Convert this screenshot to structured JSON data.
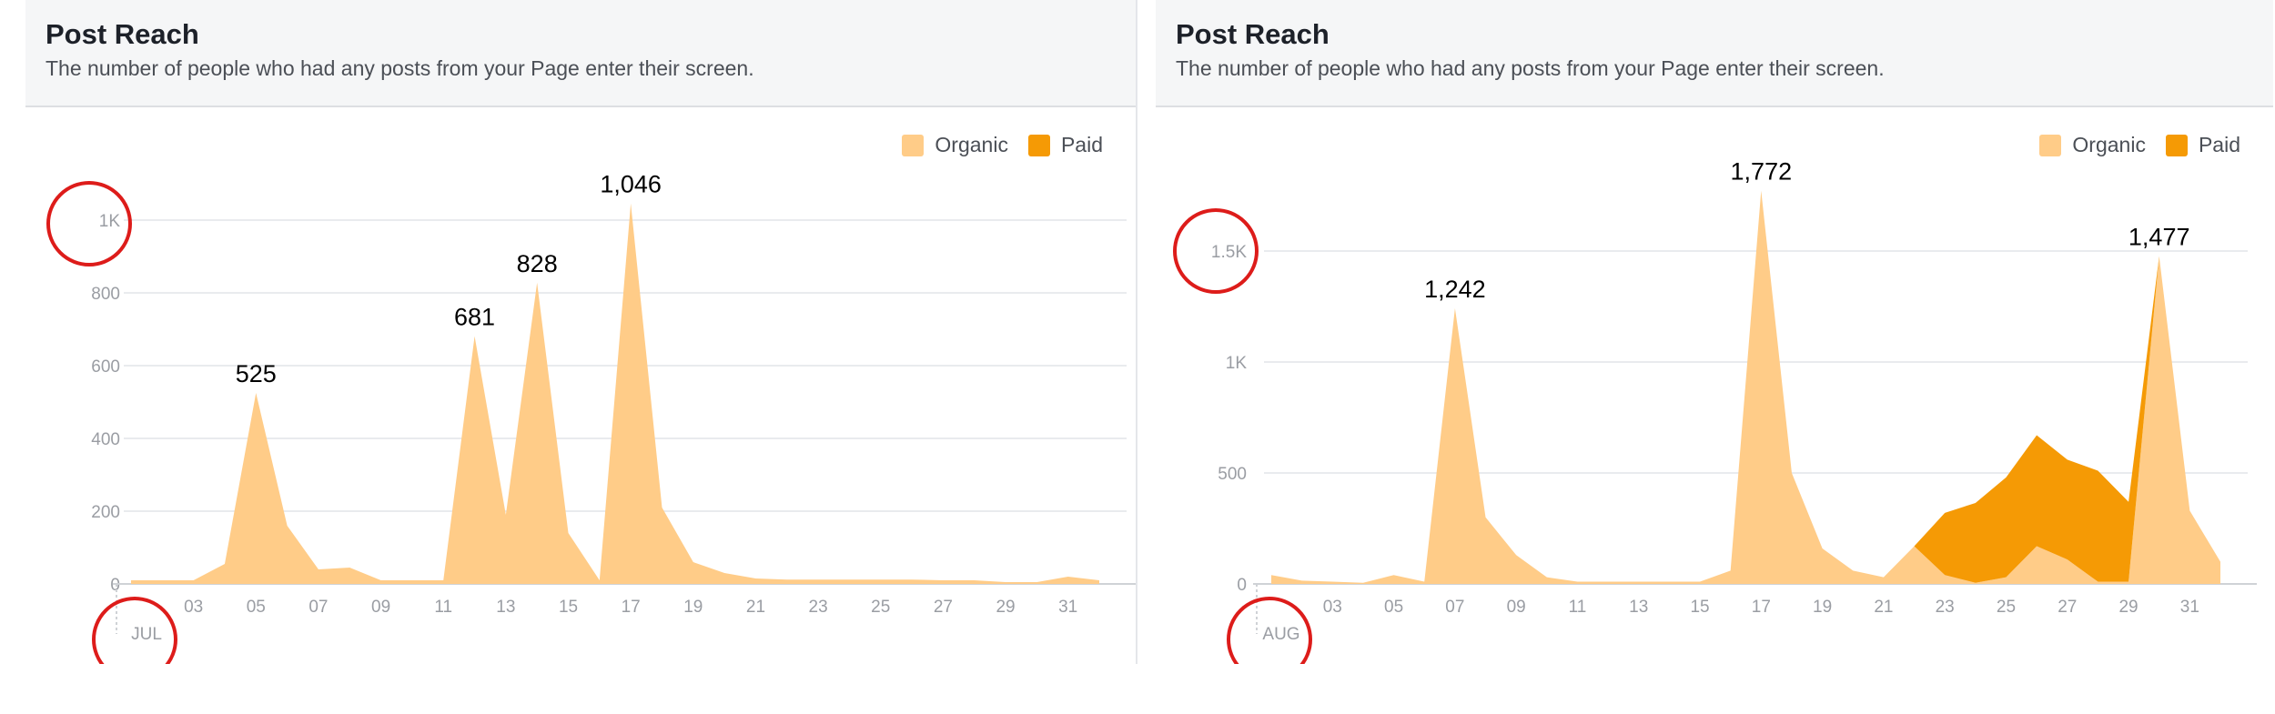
{
  "colors": {
    "organic": "#ffcc88",
    "paid": "#f59a05",
    "grid": "#e9ebee",
    "annotation": "#dd1c1a"
  },
  "panels": [
    {
      "title": "Post Reach",
      "subtitle": "The number of people who had any posts from your Page enter their screen.",
      "legend": [
        "Organic",
        "Paid"
      ]
    },
    {
      "title": "Post Reach",
      "subtitle": "The number of people who had any posts from your Page enter their screen.",
      "legend": [
        "Organic",
        "Paid"
      ]
    }
  ],
  "chart_data": [
    {
      "type": "area",
      "title": "Post Reach",
      "month_label": "JUL",
      "x": [
        1,
        2,
        3,
        4,
        5,
        6,
        7,
        8,
        9,
        10,
        11,
        12,
        13,
        14,
        15,
        16,
        17,
        18,
        19,
        20,
        21,
        22,
        23,
        24,
        25,
        26,
        27,
        28,
        29,
        30,
        31,
        32
      ],
      "xticks": [
        "03",
        "05",
        "07",
        "09",
        "11",
        "13",
        "15",
        "17",
        "19",
        "21",
        "23",
        "25",
        "27",
        "29",
        "31"
      ],
      "yticks": [
        "0",
        "200",
        "400",
        "600",
        "800",
        "1K"
      ],
      "ytick_values": [
        0,
        200,
        400,
        600,
        800,
        1000
      ],
      "ylim": [
        0,
        1000
      ],
      "xlim": [
        1,
        32
      ],
      "series": [
        {
          "name": "Organic",
          "values": [
            10,
            10,
            10,
            55,
            525,
            160,
            40,
            45,
            10,
            10,
            10,
            681,
            190,
            828,
            140,
            10,
            1046,
            210,
            60,
            30,
            15,
            12,
            12,
            12,
            12,
            12,
            10,
            10,
            5,
            5,
            20,
            10
          ]
        },
        {
          "name": "Paid",
          "values": [
            0,
            0,
            0,
            0,
            0,
            0,
            0,
            0,
            0,
            0,
            0,
            0,
            0,
            0,
            0,
            0,
            0,
            0,
            0,
            0,
            0,
            0,
            0,
            0,
            0,
            0,
            0,
            0,
            0,
            0,
            0,
            0
          ]
        }
      ],
      "data_labels": [
        {
          "x": 5,
          "value": 525,
          "text": "525"
        },
        {
          "x": 12,
          "value": 681,
          "text": "681"
        },
        {
          "x": 14,
          "value": 828,
          "text": "828"
        },
        {
          "x": 17,
          "value": 1046,
          "text": "1,046"
        }
      ],
      "legend_position": "top-right",
      "highlighted": [
        "1K",
        "JUL"
      ]
    },
    {
      "type": "area",
      "title": "Post Reach",
      "month_label": "AUG",
      "x": [
        1,
        2,
        3,
        4,
        5,
        6,
        7,
        8,
        9,
        10,
        11,
        12,
        13,
        14,
        15,
        16,
        17,
        18,
        19,
        20,
        21,
        22,
        23,
        24,
        25,
        26,
        27,
        28,
        29,
        30,
        31,
        32
      ],
      "xticks": [
        "03",
        "05",
        "07",
        "09",
        "11",
        "13",
        "15",
        "17",
        "19",
        "21",
        "23",
        "25",
        "27",
        "29",
        "31"
      ],
      "yticks": [
        "0",
        "500",
        "1K",
        "1.5K"
      ],
      "ytick_values": [
        0,
        500,
        1000,
        1500
      ],
      "ylim": [
        0,
        1500
      ],
      "xlim": [
        1,
        32
      ],
      "series": [
        {
          "name": "Organic",
          "values": [
            40,
            15,
            10,
            5,
            40,
            10,
            1242,
            300,
            130,
            30,
            10,
            10,
            10,
            10,
            10,
            60,
            1772,
            500,
            160,
            60,
            30,
            170,
            40,
            5,
            30,
            170,
            110,
            10,
            10,
            1477,
            330,
            100
          ]
        },
        {
          "name": "Paid",
          "values": [
            0,
            0,
            0,
            0,
            0,
            0,
            0,
            0,
            0,
            0,
            0,
            0,
            0,
            0,
            0,
            0,
            0,
            0,
            0,
            0,
            0,
            0,
            280,
            360,
            450,
            500,
            450,
            500,
            360,
            0,
            0,
            0
          ]
        }
      ],
      "data_labels": [
        {
          "x": 7,
          "value": 1242,
          "text": "1,242"
        },
        {
          "x": 17,
          "value": 1772,
          "text": "1,772"
        },
        {
          "x": 30,
          "value": 1477,
          "text": "1,477"
        }
      ],
      "legend_position": "top-right",
      "highlighted": [
        "1.5K",
        "AUG"
      ]
    }
  ]
}
